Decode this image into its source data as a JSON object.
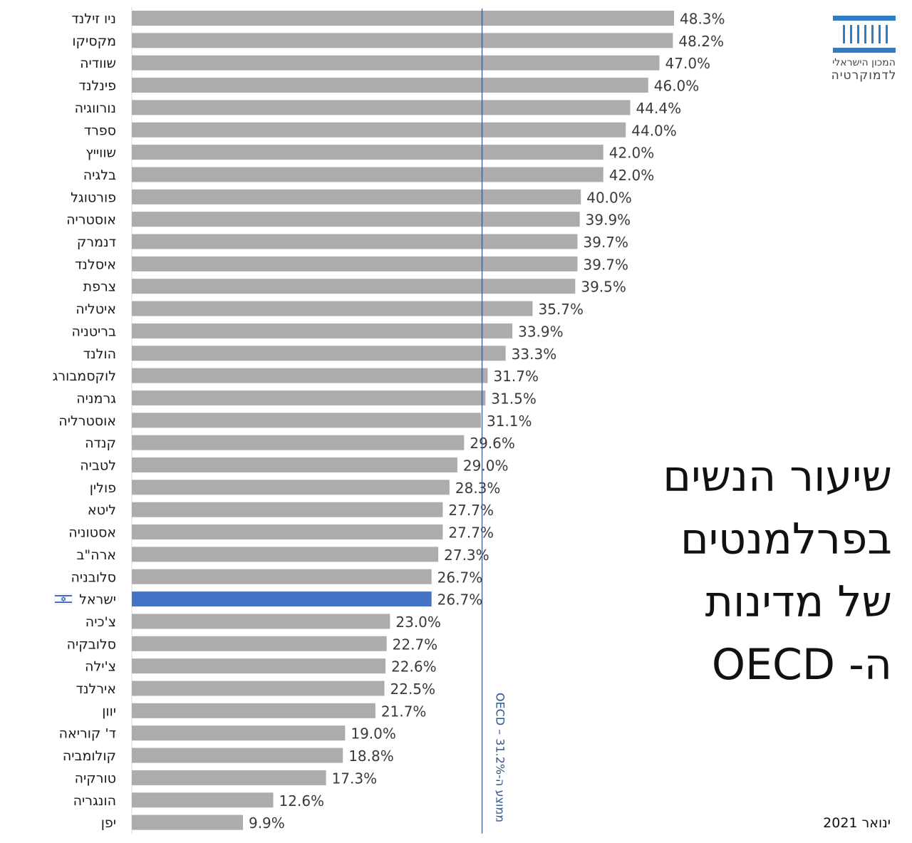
{
  "colors": {
    "bar": "#aeabab",
    "highlight_bar": "#4472c4",
    "average_line": "#2e5590",
    "logo": "#2e7dc5"
  },
  "logo": {
    "line1": "המכון הישראלי",
    "line2": "לדמוקרטיה",
    "icon": "building-columns-icon"
  },
  "title": [
    "שיעור הנשים",
    "בפרלמנטים",
    "של מדינות",
    "ה- OECD"
  ],
  "date_label": "ינואר 2021",
  "flag_icon": "israel-flag-icon",
  "chart_data": {
    "type": "bar",
    "orientation": "horizontal",
    "categories": [
      "ניו זילנד",
      "מקסיקו",
      "שוודיה",
      "פינלנד",
      "נורווגיה",
      "ספרד",
      "שווייץ",
      "בלגיה",
      "פורטוגל",
      "אוסטריה",
      "דנמרק",
      "איסלנד",
      "צרפת",
      "איטליה",
      "בריטניה",
      "הולנד",
      "לוקסמבורג",
      "גרמניה",
      "אוסטרליה",
      "קנדה",
      "לטביה",
      "פולין",
      "ליטא",
      "אסטוניה",
      "ארה\"ב",
      "סלובניה",
      "ישראל",
      "צ'כיה",
      "סלובקיה",
      "צ'ילה",
      "אירלנד",
      "יוון",
      "ד' קוריאה",
      "קולומביה",
      "טורקיה",
      "הונגריה",
      "יפן"
    ],
    "values": [
      48.3,
      48.2,
      47.0,
      46.0,
      44.4,
      44.0,
      42.0,
      42.0,
      40.0,
      39.9,
      39.7,
      39.7,
      39.5,
      35.7,
      33.9,
      33.3,
      31.7,
      31.5,
      31.1,
      29.6,
      29.0,
      28.3,
      27.7,
      27.7,
      27.3,
      26.7,
      26.7,
      23.0,
      22.7,
      22.6,
      22.5,
      21.7,
      19.0,
      18.8,
      17.3,
      12.6,
      9.9
    ],
    "value_labels": [
      "48.3%",
      "48.2%",
      "47.0%",
      "46.0%",
      "44.4%",
      "44.0%",
      "42.0%",
      "42.0%",
      "40.0%",
      "39.9%",
      "39.7%",
      "39.7%",
      "39.5%",
      "35.7%",
      "33.9%",
      "33.3%",
      "31.7%",
      "31.5%",
      "31.1%",
      "29.6%",
      "29.0%",
      "28.3%",
      "27.7%",
      "27.7%",
      "27.3%",
      "26.7%",
      "26.7%",
      "23.0%",
      "22.7%",
      "22.6%",
      "22.5%",
      "21.7%",
      "19.0%",
      "18.8%",
      "17.3%",
      "12.6%",
      "9.9%"
    ],
    "highlight": "ישראל",
    "average": {
      "value": 31.2,
      "label": "ממוצע ה-OECD – 31.2%"
    },
    "xlim": [
      0,
      48.3
    ],
    "grid": false,
    "legend": "none"
  }
}
